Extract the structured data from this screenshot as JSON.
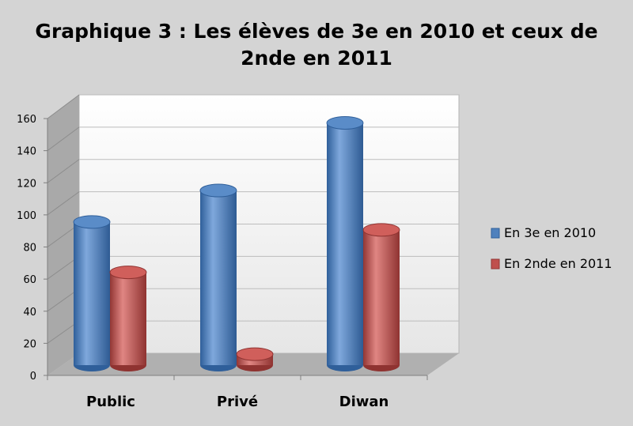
{
  "chart_data": {
    "type": "bar",
    "title_lines": [
      "Graphique 3 : Les élèves de 3e en 2010 et ceux de",
      "2nde en 2011"
    ],
    "categories": [
      "Public",
      "Privé",
      "Diwan"
    ],
    "series": [
      {
        "name": "En 3e en 2010",
        "values": [
          93,
          113,
          156
        ],
        "color": "#4f81bd"
      },
      {
        "name": "En 2nde en 2011",
        "values": [
          61,
          9,
          88
        ],
        "color": "#c0504d"
      }
    ],
    "yticks": [
      "0",
      "20",
      "40",
      "60",
      "80",
      "100",
      "120",
      "140",
      "160"
    ],
    "ylim": [
      0,
      160
    ],
    "grid": true,
    "legend_position": "right",
    "style": "3d-cylinder"
  }
}
